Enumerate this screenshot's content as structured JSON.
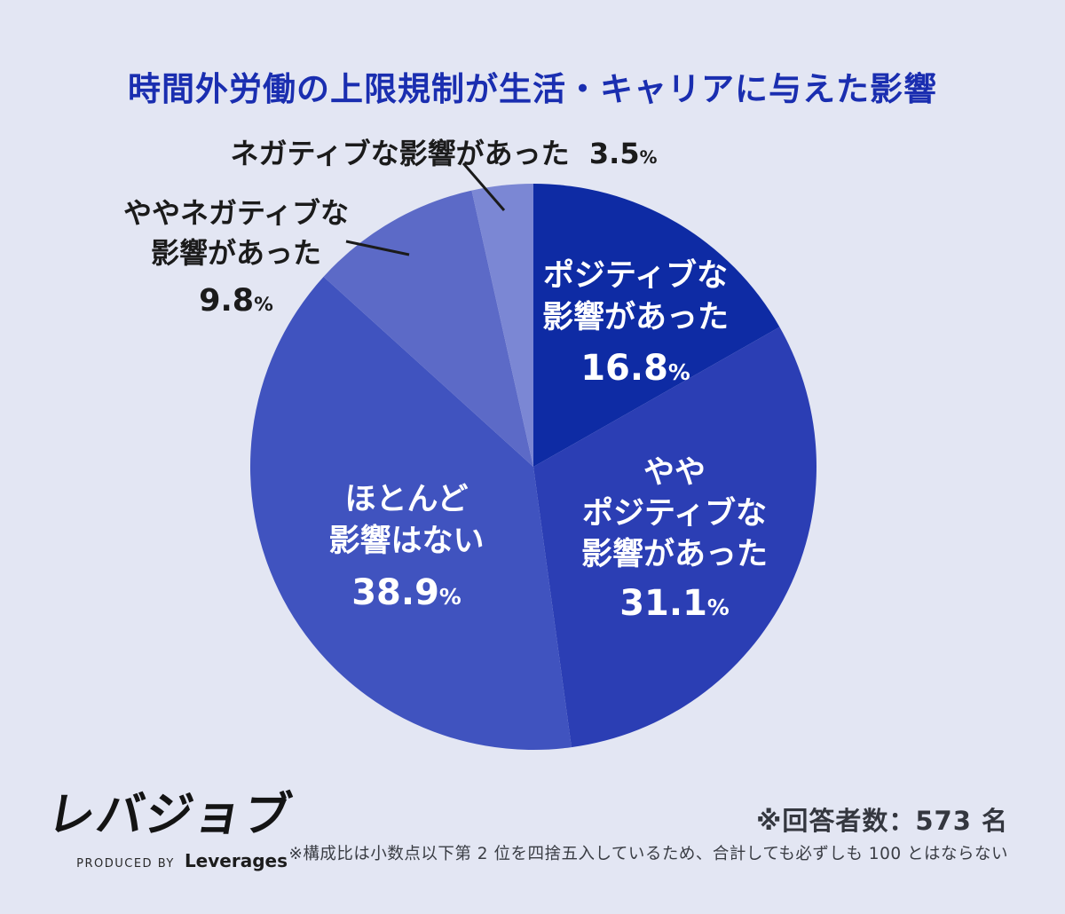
{
  "title": "時間外労働の上限規制が生活・キャリアに与えた影響",
  "chart_data": {
    "type": "pie",
    "title": "時間外労働の上限規制が生活・キャリアに与えた影響",
    "start_angle_deg_from_top_clockwise": 0,
    "percent_sign": "%",
    "slices": [
      {
        "label": "ポジティブな影響があった",
        "value": 16.8,
        "display_value": "16.8",
        "color": "#0e2ba4",
        "label_lines": [
          "ポジティブな",
          "影響があった"
        ],
        "label_position": "inside"
      },
      {
        "label": "ややポジティブな影響があった",
        "value": 31.1,
        "display_value": "31.1",
        "color": "#2b3eb4",
        "label_lines": [
          "やや",
          "ポジティブな",
          "影響があった"
        ],
        "label_position": "inside"
      },
      {
        "label": "ほとんど影響はない",
        "value": 38.9,
        "display_value": "38.9",
        "color": "#4053bf",
        "label_lines": [
          "ほとんど",
          "影響はない"
        ],
        "label_position": "inside"
      },
      {
        "label": "ややネガティブな影響があった",
        "value": 9.8,
        "display_value": "9.8",
        "color": "#5c6ac7",
        "label_lines": [
          "ややネガティブな",
          "影響があった"
        ],
        "label_position": "outside"
      },
      {
        "label": "ネガティブな影響があった",
        "value": 3.5,
        "display_value": "3.5",
        "color": "#7b87d4",
        "label_lines": [
          "ネガティブな影響があった"
        ],
        "label_position": "outside"
      }
    ]
  },
  "footer": {
    "logo_text": "レバジョブ",
    "logo_sub_prefix": "PRODUCED BY",
    "logo_sub_brand": "Leverages",
    "respondents_note": "※回答者数：573 名",
    "rounding_note": "※構成比は小数点以下第 2 位を四捨五入しているため、合計しても必ずしも 100 とはならない"
  }
}
